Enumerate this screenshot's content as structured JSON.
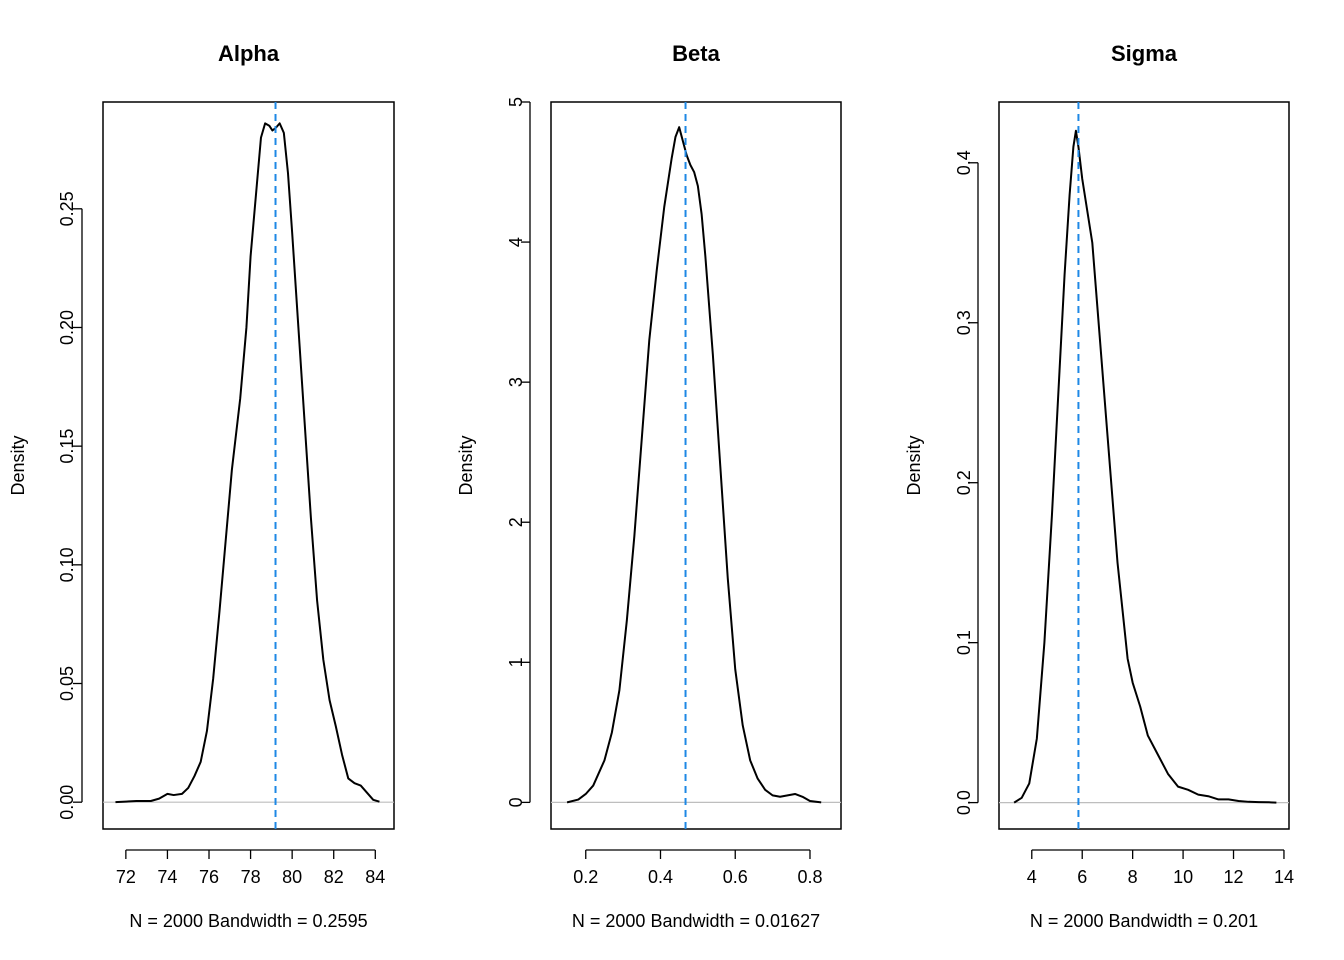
{
  "colors": {
    "density_line": "#000000",
    "mean_line": "#1E88E5",
    "zero_line": "#BEBEBE",
    "frame": "#000000",
    "background": "#FFFFFF"
  },
  "chart_data": [
    {
      "type": "line",
      "title": "Alpha",
      "xlabel": "N = 2000   Bandwidth = 0.2595",
      "ylabel": "Density",
      "xlim": [
        70.9,
        84.9
      ],
      "ylim": [
        -0.0113,
        0.295
      ],
      "xticks": [
        72,
        74,
        76,
        78,
        80,
        82,
        84
      ],
      "xtick_labels": [
        "72",
        "74",
        "76",
        "78",
        "80",
        "82",
        "84"
      ],
      "yticks": [
        0.0,
        0.05,
        0.1,
        0.15,
        0.2,
        0.25
      ],
      "ytick_labels": [
        "0.00",
        "0.05",
        "0.10",
        "0.15",
        "0.20",
        "0.25"
      ],
      "mean_line_x": 79.2,
      "series": [
        {
          "x": [
            71.5,
            72.5,
            73.2,
            73.6,
            74.0,
            74.3,
            74.7,
            75.0,
            75.3,
            75.6,
            75.9,
            76.2,
            76.5,
            76.8,
            77.1,
            77.5,
            77.8,
            78.0,
            78.3,
            78.5,
            78.7,
            78.9,
            79.05,
            79.2,
            79.4,
            79.6,
            79.8,
            80.0,
            80.3,
            80.6,
            80.9,
            81.2,
            81.5,
            81.8,
            82.1,
            82.4,
            82.7,
            83.0,
            83.3,
            83.6,
            83.9,
            84.2
          ],
          "y": [
            0.0,
            0.0005,
            0.0005,
            0.0015,
            0.0035,
            0.003,
            0.0035,
            0.006,
            0.011,
            0.017,
            0.03,
            0.052,
            0.08,
            0.11,
            0.14,
            0.17,
            0.2,
            0.23,
            0.26,
            0.28,
            0.286,
            0.285,
            0.283,
            0.284,
            0.286,
            0.282,
            0.265,
            0.24,
            0.2,
            0.16,
            0.12,
            0.085,
            0.06,
            0.043,
            0.032,
            0.02,
            0.01,
            0.008,
            0.007,
            0.004,
            0.001,
            0.0002
          ]
        }
      ]
    },
    {
      "type": "line",
      "title": "Beta",
      "xlabel": "N = 2000   Bandwidth = 0.01627",
      "ylabel": "Density",
      "xlim": [
        0.107,
        0.883
      ],
      "ylim": [
        -0.19,
        5.0
      ],
      "xticks": [
        0.2,
        0.4,
        0.6,
        0.8
      ],
      "xtick_labels": [
        "0.2",
        "0.4",
        "0.6",
        "0.8"
      ],
      "yticks": [
        0,
        1,
        2,
        3,
        4,
        5
      ],
      "ytick_labels": [
        "0",
        "1",
        "2",
        "3",
        "4",
        "5"
      ],
      "mean_line_x": 0.467,
      "series": [
        {
          "x": [
            0.15,
            0.18,
            0.2,
            0.22,
            0.25,
            0.27,
            0.29,
            0.31,
            0.33,
            0.35,
            0.37,
            0.39,
            0.41,
            0.43,
            0.44,
            0.45,
            0.46,
            0.47,
            0.48,
            0.49,
            0.5,
            0.51,
            0.52,
            0.54,
            0.56,
            0.58,
            0.6,
            0.62,
            0.64,
            0.66,
            0.68,
            0.7,
            0.72,
            0.74,
            0.76,
            0.78,
            0.8,
            0.83
          ],
          "y": [
            0.0,
            0.02,
            0.06,
            0.12,
            0.3,
            0.5,
            0.8,
            1.3,
            1.9,
            2.6,
            3.3,
            3.8,
            4.25,
            4.6,
            4.75,
            4.82,
            4.72,
            4.62,
            4.55,
            4.5,
            4.4,
            4.2,
            3.9,
            3.2,
            2.4,
            1.6,
            0.95,
            0.55,
            0.3,
            0.17,
            0.09,
            0.05,
            0.04,
            0.05,
            0.06,
            0.04,
            0.01,
            0.0
          ]
        }
      ]
    },
    {
      "type": "line",
      "title": "Sigma",
      "xlabel": "N = 2000   Bandwidth = 0.201",
      "ylabel": "Density",
      "xlim": [
        2.7,
        14.2
      ],
      "ylim": [
        -0.0165,
        0.438
      ],
      "xticks": [
        4,
        6,
        8,
        10,
        12,
        14
      ],
      "xtick_labels": [
        "4",
        "6",
        "8",
        "10",
        "12",
        "14"
      ],
      "yticks": [
        0.0,
        0.1,
        0.2,
        0.3,
        0.4
      ],
      "ytick_labels": [
        "0.0",
        "0.1",
        "0.2",
        "0.3",
        "0.4"
      ],
      "mean_line_x": 5.85,
      "series": [
        {
          "x": [
            3.3,
            3.6,
            3.9,
            4.2,
            4.5,
            4.8,
            5.1,
            5.3,
            5.5,
            5.65,
            5.75,
            5.85,
            6.0,
            6.2,
            6.4,
            6.6,
            6.8,
            7.0,
            7.2,
            7.4,
            7.6,
            7.8,
            8.0,
            8.3,
            8.6,
            9.0,
            9.4,
            9.8,
            10.2,
            10.6,
            11.0,
            11.4,
            11.8,
            12.2,
            12.6,
            13.0,
            13.4,
            13.7
          ],
          "y": [
            0.0,
            0.003,
            0.012,
            0.04,
            0.1,
            0.18,
            0.27,
            0.33,
            0.38,
            0.41,
            0.42,
            0.41,
            0.39,
            0.37,
            0.35,
            0.31,
            0.27,
            0.23,
            0.19,
            0.15,
            0.12,
            0.09,
            0.075,
            0.06,
            0.042,
            0.03,
            0.018,
            0.01,
            0.008,
            0.005,
            0.004,
            0.002,
            0.002,
            0.001,
            0.0005,
            0.0003,
            0.0002,
            0.0
          ]
        }
      ]
    }
  ]
}
